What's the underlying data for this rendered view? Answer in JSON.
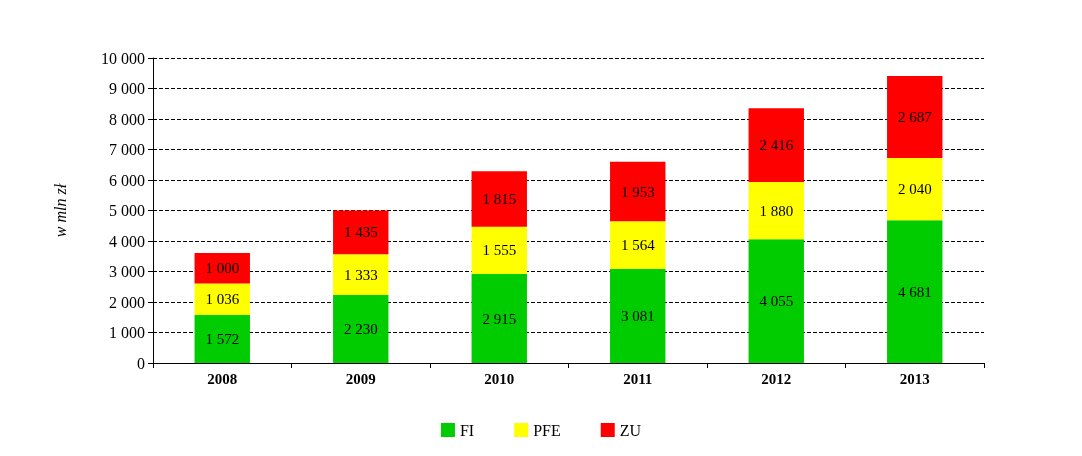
{
  "chart_data": {
    "type": "bar",
    "stacked": true,
    "ylabel": "w mln zł",
    "categories": [
      "2008",
      "2009",
      "2010",
      "2011",
      "2012",
      "2013"
    ],
    "series": [
      {
        "name": "FI",
        "color": "#00cc00",
        "values": [
          1572,
          2230,
          2915,
          3081,
          4055,
          4681
        ],
        "value_labels": [
          "1 572",
          "2 230",
          "2 915",
          "3 081",
          "4 055",
          "4 681"
        ]
      },
      {
        "name": "PFE",
        "color": "#ffff00",
        "values": [
          1036,
          1333,
          1555,
          1564,
          1880,
          2040
        ],
        "value_labels": [
          "1 036",
          "1 333",
          "1 555",
          "1 564",
          "1 880",
          "2 040"
        ]
      },
      {
        "name": "ZU",
        "color": "#ff0000",
        "values": [
          1000,
          1435,
          1815,
          1953,
          2416,
          2687
        ],
        "value_labels": [
          "1 000",
          "1 435",
          "1 815",
          "1 953",
          "2 416",
          "2 687"
        ]
      }
    ],
    "ylim": [
      0,
      10000
    ],
    "yticks": [
      {
        "value": 0,
        "label": "0"
      },
      {
        "value": 1000,
        "label": "1 000"
      },
      {
        "value": 2000,
        "label": "2 000"
      },
      {
        "value": 3000,
        "label": "3 000"
      },
      {
        "value": 4000,
        "label": "4 000"
      },
      {
        "value": 5000,
        "label": "5 000"
      },
      {
        "value": 6000,
        "label": "6 000"
      },
      {
        "value": 7000,
        "label": "7 000"
      },
      {
        "value": 8000,
        "label": "8 000"
      },
      {
        "value": 9000,
        "label": "9 000"
      },
      {
        "value": 10000,
        "label": "10 000"
      }
    ],
    "grid": "y",
    "legend": "bottom"
  }
}
